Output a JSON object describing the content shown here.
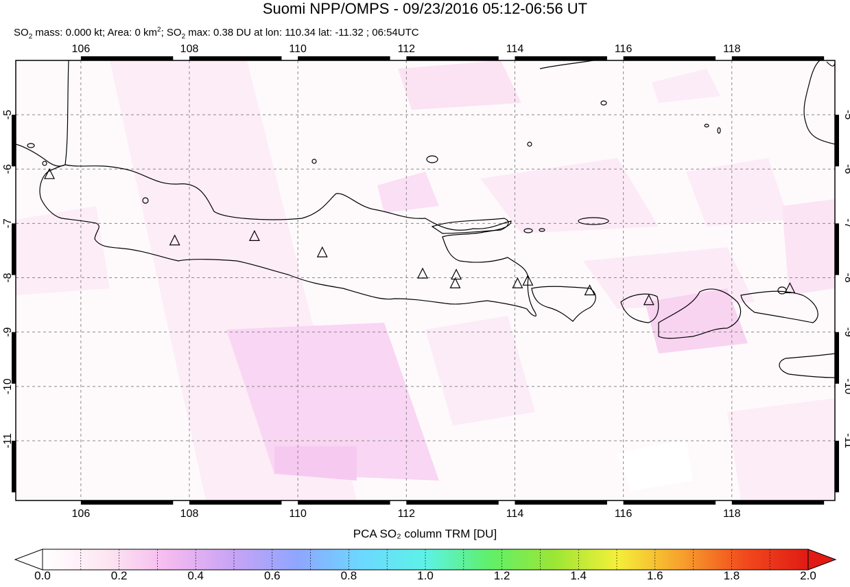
{
  "header": {
    "title": "Suomi NPP/OMPS - 09/23/2016 05:12-06:56 UT",
    "stats": {
      "mass_label": "SO",
      "mass_sub": "2",
      "mass_text": " mass: 0.000 kt; Area: 0 km",
      "area_sup": "2",
      "max_label": "; SO",
      "max_sub": "2",
      "max_text": " max: 0.38 DU at lon: 110.34 lat: -11.32 ; 06:54UTC"
    }
  },
  "map": {
    "lon_range": [
      104.8,
      119.9
    ],
    "lat_range": [
      -12.1,
      -4.0
    ],
    "lon_ticks": [
      106,
      108,
      110,
      112,
      114,
      116,
      118
    ],
    "lat_ticks": [
      -5,
      -6,
      -7,
      -8,
      -9,
      -10,
      -11
    ],
    "grid": "dashed",
    "volcanoes": [
      {
        "lon": 105.42,
        "lat": -6.1
      },
      {
        "lon": 107.73,
        "lat": -7.32
      },
      {
        "lon": 109.2,
        "lat": -7.24
      },
      {
        "lon": 110.45,
        "lat": -7.54
      },
      {
        "lon": 112.3,
        "lat": -7.93
      },
      {
        "lon": 112.92,
        "lat": -7.95
      },
      {
        "lon": 112.9,
        "lat": -8.11
      },
      {
        "lon": 114.05,
        "lat": -8.11
      },
      {
        "lon": 114.24,
        "lat": -8.06
      },
      {
        "lon": 115.38,
        "lat": -8.24
      },
      {
        "lon": 116.47,
        "lat": -8.42
      },
      {
        "lon": 119.07,
        "lat": -8.2
      }
    ],
    "colors": {
      "land_outline": "#000000",
      "grid": "#888888",
      "frame": "#000000"
    }
  },
  "colorbar": {
    "title": "PCA SO₂ column TRM [DU]",
    "ticks": [
      "0.0",
      "0.2",
      "0.4",
      "0.6",
      "0.8",
      "1.0",
      "1.2",
      "1.4",
      "1.6",
      "1.8",
      "2.0"
    ],
    "range": [
      0.0,
      2.0
    ],
    "colors": [
      "#ffffff",
      "#fde6f2",
      "#f4b9f0",
      "#c7a3f5",
      "#8fa6ff",
      "#6cd8ff",
      "#5df2e6",
      "#5ff06b",
      "#9ae635",
      "#f4f03a",
      "#f7a22d",
      "#f24a1d",
      "#e01b14"
    ]
  }
}
